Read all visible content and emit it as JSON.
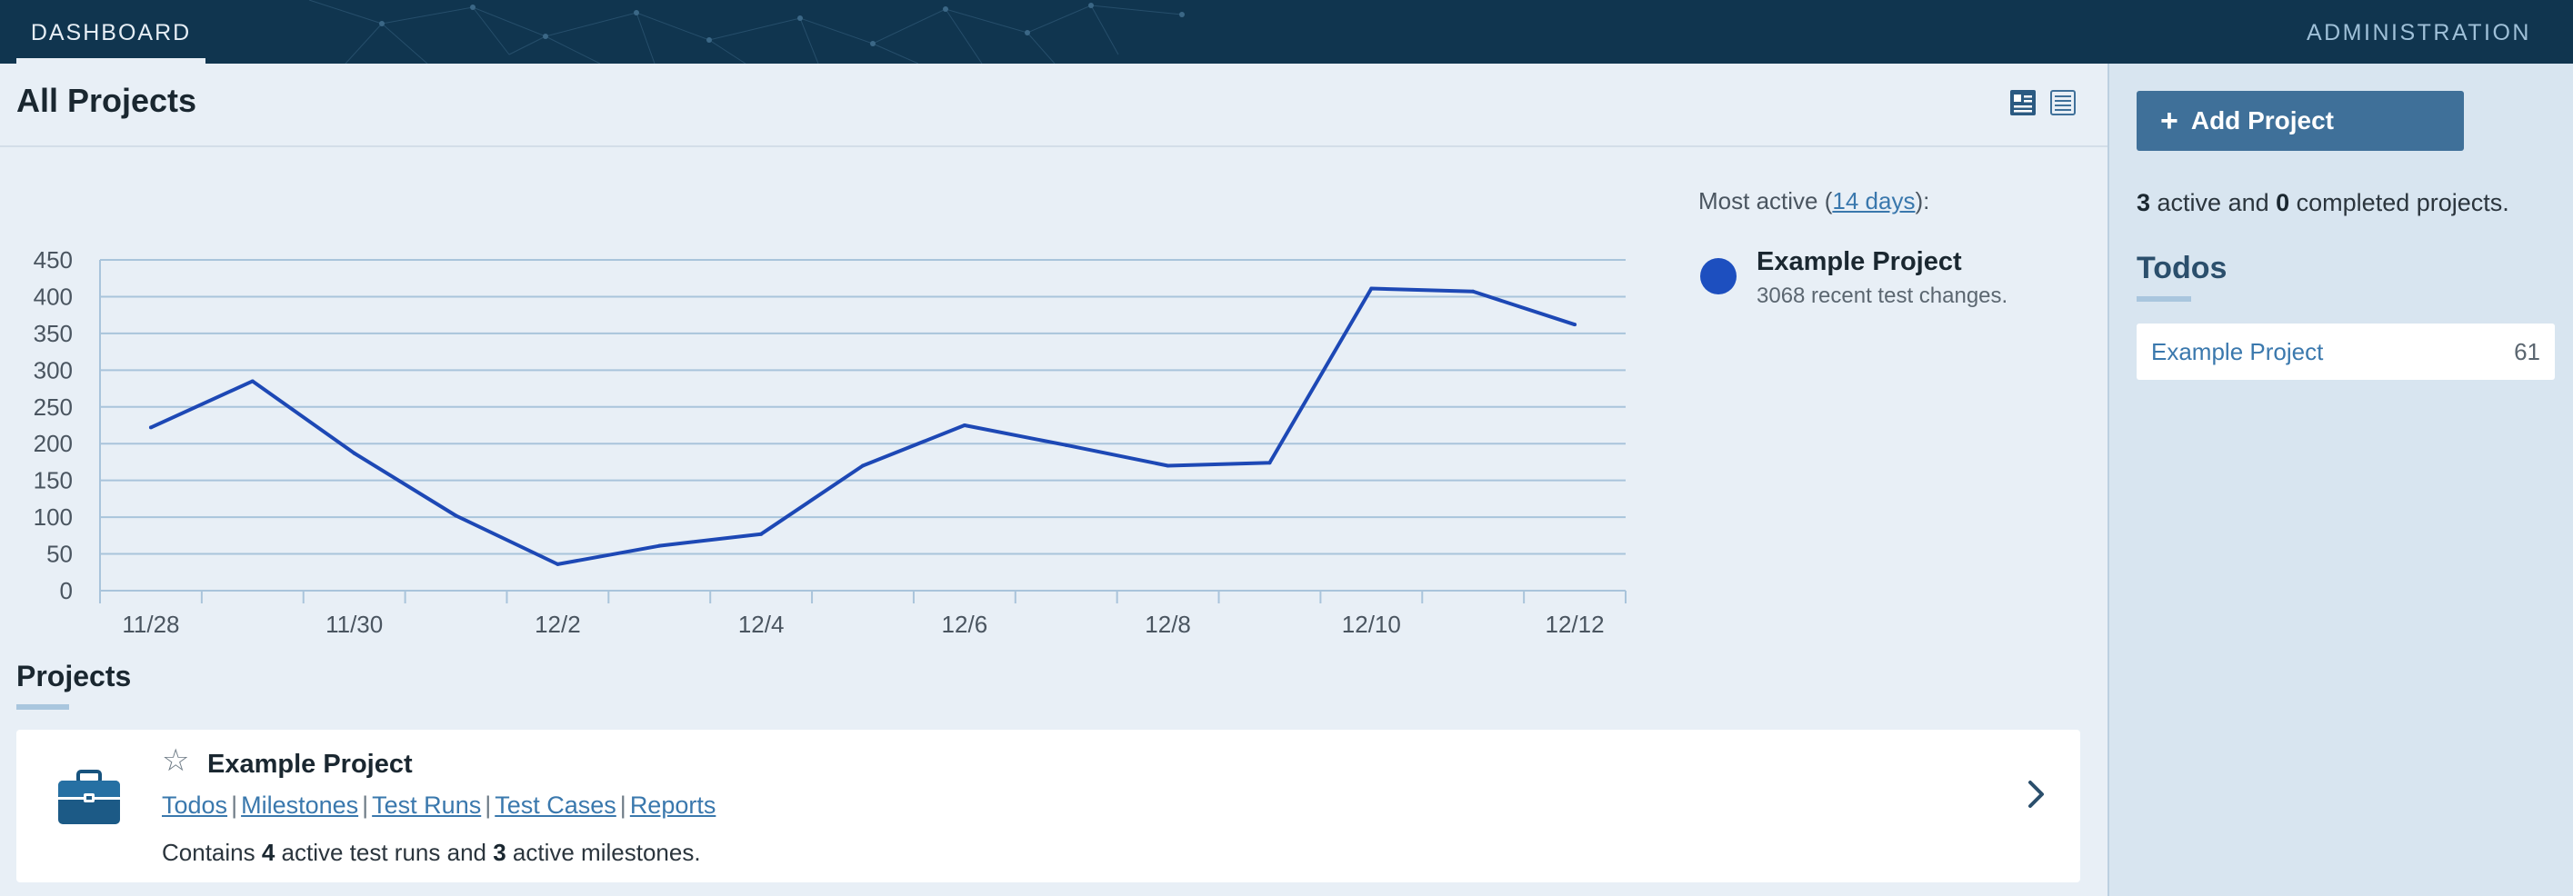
{
  "nav": {
    "dashboard_label": "DASHBOARD",
    "administration_label": "ADMINISTRATION"
  },
  "main": {
    "title": "All Projects",
    "view_icons": [
      "detail-view-icon",
      "compact-view-icon"
    ]
  },
  "chart_data": {
    "type": "line",
    "x": [
      "11/28",
      "11/29",
      "11/30",
      "12/1",
      "12/2",
      "12/3",
      "12/4",
      "12/5",
      "12/6",
      "12/7",
      "12/8",
      "12/9",
      "12/10",
      "12/11",
      "12/12"
    ],
    "tick_labels": [
      "11/28",
      "11/30",
      "12/2",
      "12/4",
      "12/6",
      "12/8",
      "12/10",
      "12/12"
    ],
    "series": [
      {
        "values": [
          222,
          285,
          187,
          102,
          36,
          61,
          77,
          170,
          225,
          198,
          170,
          174,
          411,
          407,
          362
        ]
      }
    ],
    "yticks": [
      0,
      50,
      100,
      150,
      200,
      250,
      300,
      350,
      400,
      450
    ],
    "ylim": [
      0,
      450
    ],
    "grid": true,
    "line_color": "#1d48b5"
  },
  "most_active": {
    "label_prefix": "Most active (",
    "days_link": "14 days",
    "label_suffix": "):",
    "project_name": "Example Project",
    "project_sub": "3068 recent test changes.",
    "dot_color": "#1d4fbf"
  },
  "projects": {
    "section_title": "Projects",
    "items": [
      {
        "name": "Example Project",
        "links": [
          "Todos",
          "Milestones",
          "Test Runs",
          "Test Cases",
          "Reports"
        ],
        "desc_prefix": "Contains ",
        "active_runs": "4",
        "desc_mid": " active test runs and ",
        "active_milestones": "3",
        "desc_suffix": " active milestones.",
        "icon": "briefcase-icon"
      }
    ]
  },
  "sidebar": {
    "add_button_label": "Add Project",
    "summary_active": "3",
    "summary_mid": " active and ",
    "summary_completed": "0",
    "summary_suffix": " completed projects.",
    "todos_title": "Todos",
    "todos": [
      {
        "name": "Example Project",
        "count": "61"
      }
    ]
  }
}
